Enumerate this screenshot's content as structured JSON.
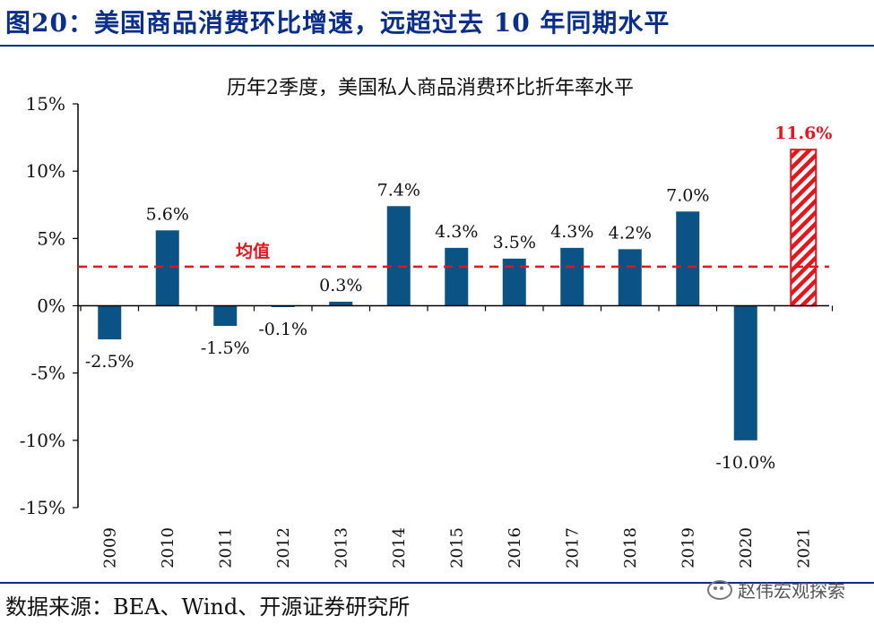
{
  "header": {
    "title": "图20：美国商品消费环比增速，远超过去 10 年同期水平"
  },
  "footer": {
    "source": "数据来源：BEA、Wind、开源证券研究所"
  },
  "watermark": {
    "text": "赵伟宏观探索",
    "icon": "wechat-icon"
  },
  "colors": {
    "bar": "#0b5285",
    "highlight": "#e8141c",
    "title": "#0a2f8a",
    "avg_line": "#e8141c"
  },
  "chart_data": {
    "type": "bar",
    "title": "历年2季度，美国私人商品消费环比折年率水平",
    "categories": [
      "2009",
      "2010",
      "2011",
      "2012",
      "2013",
      "2014",
      "2015",
      "2016",
      "2017",
      "2018",
      "2019",
      "2020",
      "2021"
    ],
    "values": [
      -2.5,
      5.6,
      -1.5,
      -0.1,
      0.3,
      7.4,
      4.3,
      3.5,
      4.3,
      4.2,
      7.0,
      -10.0,
      11.6
    ],
    "data_labels": [
      "-2.5%",
      "5.6%",
      "-1.5%",
      "-0.1%",
      "0.3%",
      "7.4%",
      "4.3%",
      "3.5%",
      "4.3%",
      "4.2%",
      "7.0%",
      "-10.0%",
      "11.6%"
    ],
    "highlight_category": "2021",
    "ylim": [
      -15,
      15
    ],
    "yticks": [
      15,
      10,
      5,
      0,
      -5,
      -10,
      -15
    ],
    "ytick_labels": [
      "15%",
      "10%",
      "5%",
      "0%",
      "-5%",
      "-10%",
      "-15%"
    ],
    "reference_line": {
      "label": "均值",
      "value": 2.9
    },
    "xlabel": "",
    "ylabel": ""
  }
}
